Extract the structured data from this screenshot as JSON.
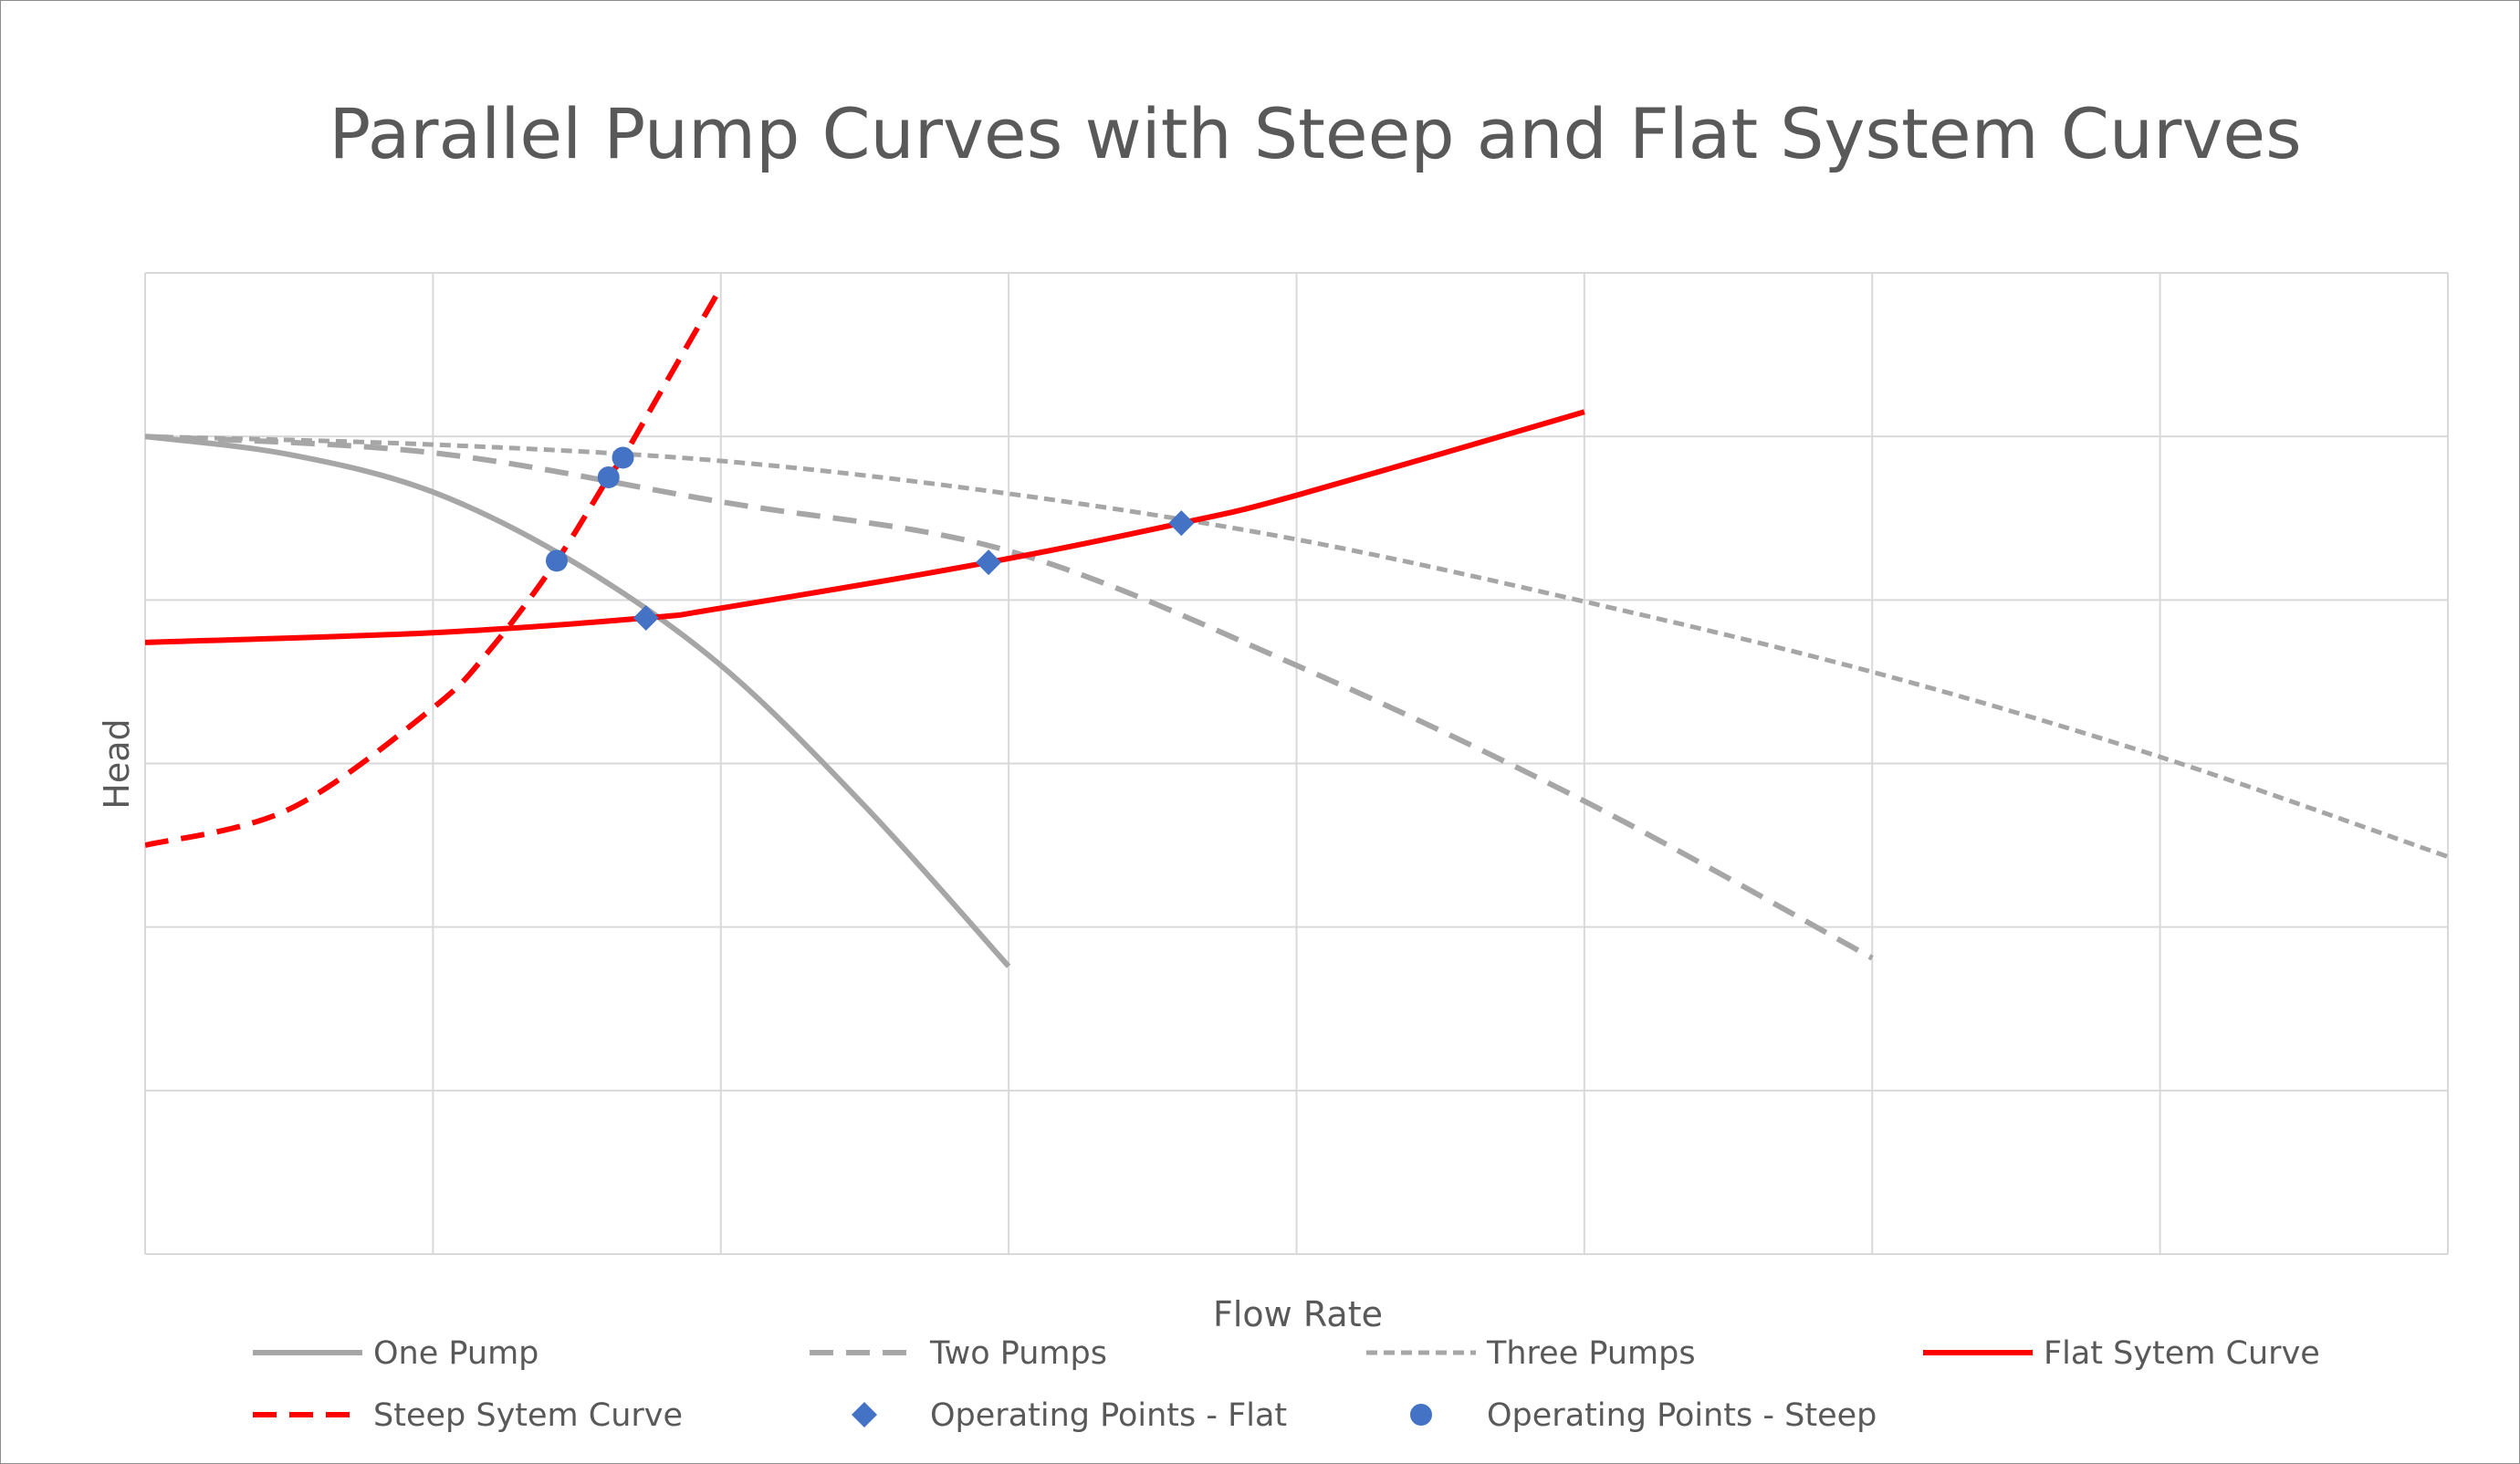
{
  "chart_data": {
    "type": "line",
    "title": "Parallel Pump Curves with Steep and Flat System Curves",
    "xlabel": "Flow Rate",
    "ylabel": "Head",
    "xlim": [
      0,
      8
    ],
    "ylim": [
      0,
      6
    ],
    "grid": true,
    "legend_position": "bottom",
    "series": [
      {
        "name": "One Pump",
        "style": "solid",
        "color": "#a6a6a6",
        "x": [
          0,
          0.5,
          1.0,
          1.5,
          2.0,
          2.5,
          3.0
        ],
        "y": [
          5.0,
          4.89,
          4.66,
          4.22,
          3.6,
          2.74,
          1.76
        ]
      },
      {
        "name": "Two Pumps",
        "style": "dashed",
        "color": "#a6a6a6",
        "x": [
          0,
          1,
          2,
          3,
          4,
          5,
          6
        ],
        "y": [
          5.0,
          4.9,
          4.6,
          4.3,
          3.6,
          2.77,
          1.81
        ]
      },
      {
        "name": "Three Pumps",
        "style": "dotted-dash",
        "color": "#a6a6a6",
        "x": [
          0,
          1,
          2,
          3,
          4,
          5,
          6,
          7,
          8
        ],
        "y": [
          5.0,
          4.95,
          4.85,
          4.65,
          4.37,
          3.99,
          3.56,
          3.04,
          2.43
        ]
      },
      {
        "name": "Flat Sytem Curve",
        "style": "solid",
        "color": "#ff0000",
        "x": [
          0,
          1.0,
          1.74,
          2.0,
          2.93,
          3.6,
          4.0,
          5.0
        ],
        "y": [
          3.74,
          3.8,
          3.89,
          3.95,
          4.23,
          4.47,
          4.64,
          5.15
        ]
      },
      {
        "name": "Steep Sytem Curve",
        "style": "dashed",
        "color": "#ff0000",
        "x": [
          0,
          0.5,
          1.0,
          1.2,
          1.43,
          1.61,
          1.66,
          1.8,
          2.0
        ],
        "y": [
          2.5,
          2.72,
          3.34,
          3.7,
          4.24,
          4.75,
          4.87,
          5.3,
          5.91
        ]
      },
      {
        "name": "Operating Points - Flat",
        "style": "marker-diamond",
        "color": "#4472c4",
        "x": [
          1.74,
          2.93,
          3.6
        ],
        "y": [
          3.89,
          4.23,
          4.47
        ]
      },
      {
        "name": "Operating Points - Steep",
        "style": "marker-circle",
        "color": "#4472c4",
        "x": [
          1.43,
          1.61,
          1.66
        ],
        "y": [
          4.24,
          4.75,
          4.87
        ]
      }
    ]
  }
}
